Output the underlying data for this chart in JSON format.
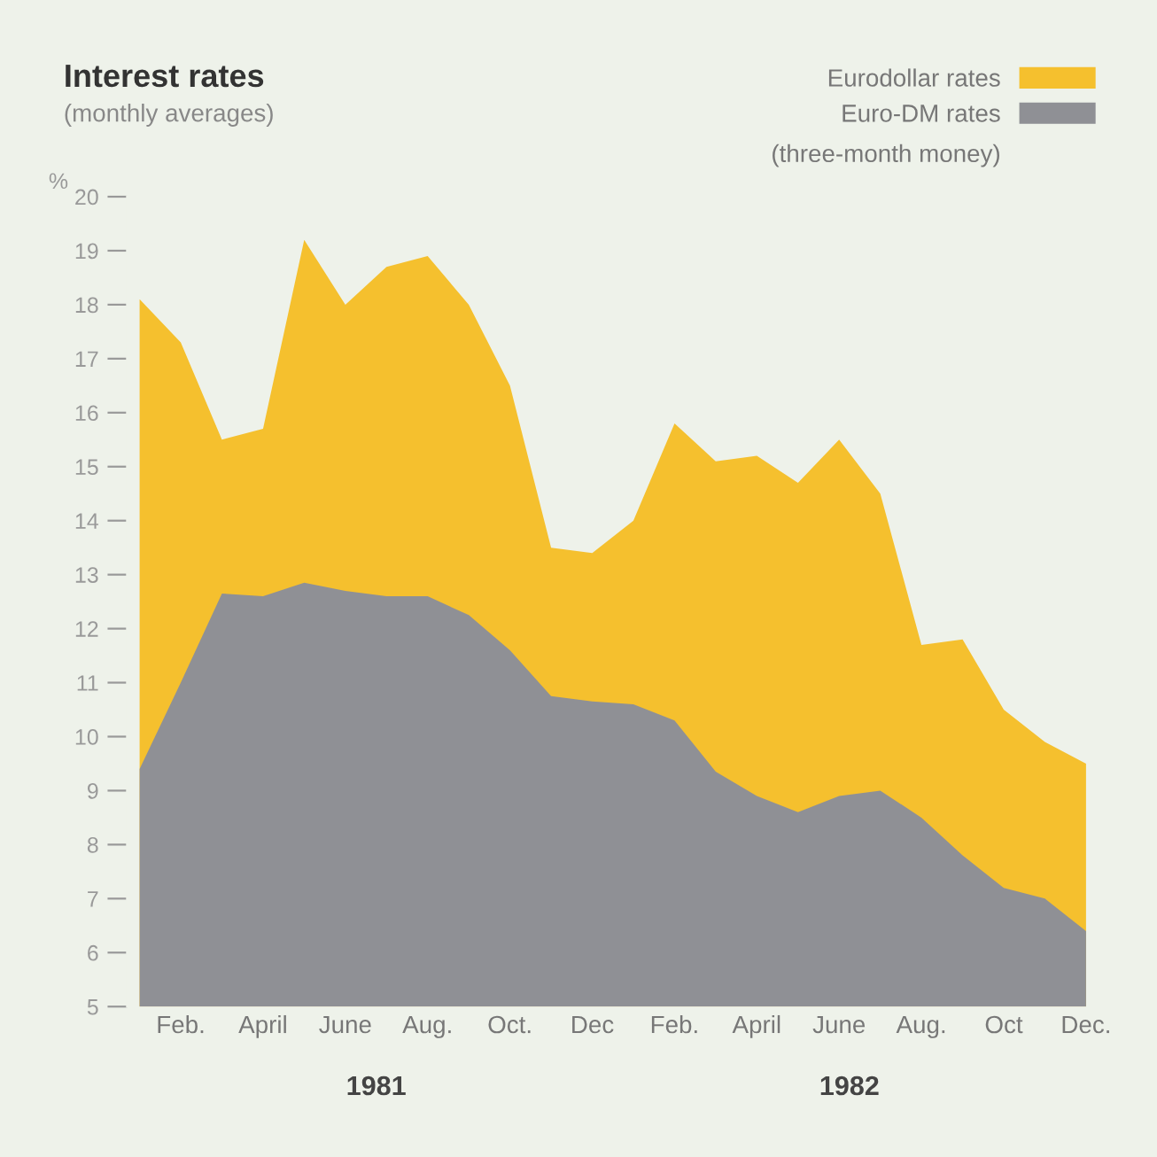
{
  "chart_data": {
    "type": "area",
    "title": "Interest rates",
    "subtitle": "(monthly averages)",
    "ylabel": "%",
    "categories": [
      null,
      "Feb.",
      null,
      "April",
      null,
      "June",
      null,
      "Aug.",
      null,
      "Oct.",
      null,
      "Dec",
      null,
      "Feb.",
      null,
      "April",
      null,
      "June",
      null,
      "Aug.",
      null,
      "Oct",
      null,
      "Dec."
    ],
    "series": [
      {
        "name": "Eurodollar rates",
        "color": "#f5c02e",
        "values": [
          18.1,
          17.3,
          15.5,
          15.7,
          19.2,
          18.0,
          18.7,
          18.9,
          18.0,
          16.5,
          13.5,
          13.4,
          14.0,
          15.8,
          15.1,
          15.2,
          14.7,
          15.5,
          14.5,
          11.7,
          11.8,
          10.5,
          9.9,
          9.5
        ]
      },
      {
        "name": "Euro-DM rates",
        "color": "#8f9095",
        "values": [
          9.4,
          11.0,
          12.65,
          12.6,
          12.85,
          12.7,
          12.6,
          12.6,
          12.25,
          11.6,
          10.75,
          10.65,
          10.6,
          10.3,
          9.35,
          8.9,
          8.6,
          8.9,
          9.0,
          8.5,
          7.8,
          7.2,
          7.0,
          6.4
        ]
      }
    ],
    "ylim": [
      5,
      20
    ],
    "yticks": [
      5,
      6,
      7,
      8,
      9,
      10,
      11,
      12,
      13,
      14,
      15,
      16,
      17,
      18,
      19,
      20
    ],
    "grid": false,
    "legend": "top right",
    "annotations": [
      "(three-month money)",
      "1981",
      "1982"
    ]
  }
}
